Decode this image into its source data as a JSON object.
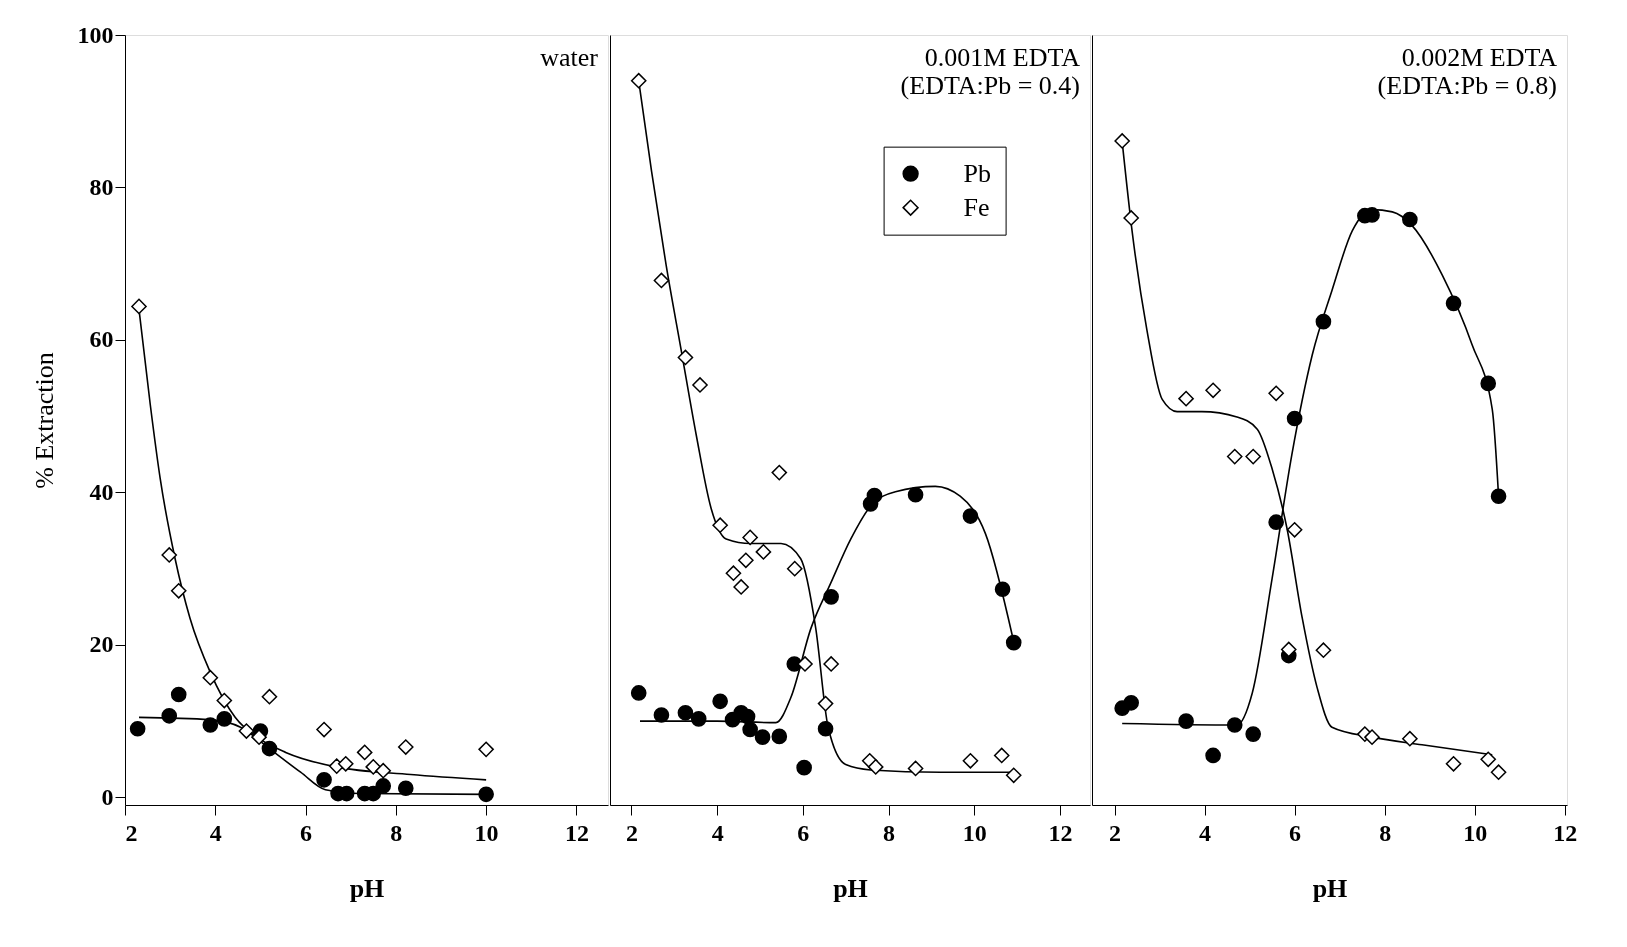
{
  "chart_data": [
    {
      "type": "scatter",
      "annotations": [
        "water"
      ],
      "xlabel": "pH",
      "ylabel": "% Extraction",
      "xlim": [
        2,
        12.7
      ],
      "ylim": [
        -1,
        100
      ],
      "xticks": [
        2,
        4,
        6,
        8,
        10,
        12
      ],
      "yticks": [
        0,
        20,
        40,
        60,
        80,
        100
      ],
      "grid": false,
      "legend": false,
      "series": [
        {
          "type": "line",
          "color": "#000000",
          "x": [
            2.31,
            2.56,
            2.78,
            3.11,
            3.44,
            3.89,
            4.44,
            5.0,
            5.56,
            6.67,
            8.33,
            10.0
          ],
          "values": [
            64,
            51.5,
            41.8,
            31.3,
            23.5,
            16.4,
            10.5,
            7.6,
            5.9,
            4.0,
            3.0,
            2.3
          ]
        },
        {
          "type": "line",
          "color": "#000000",
          "x": [
            2.31,
            3.89,
            4.56,
            5.22,
            5.89,
            6.44,
            7.22,
            10.0
          ],
          "values": [
            10.5,
            10.2,
            9.2,
            6.3,
            3.3,
            1.0,
            0.5,
            0.4
          ]
        },
        {
          "color": "#000000",
          "marker": "circle",
          "x": [
            2.28,
            2.98,
            3.19,
            3.89,
            4.2,
            5.0,
            5.2,
            6.41,
            6.72,
            6.91,
            7.31,
            7.5,
            7.72,
            8.22,
            10.0
          ],
          "values": [
            9.0,
            10.7,
            13.5,
            9.5,
            10.3,
            8.7,
            6.4,
            2.3,
            0.5,
            0.5,
            0.5,
            0.5,
            1.5,
            1.2,
            0.4
          ]
        },
        {
          "color": "#000000",
          "marker": "diamond",
          "x": [
            2.31,
            2.98,
            3.19,
            3.89,
            4.2,
            4.69,
            4.97,
            5.2,
            6.41,
            6.69,
            6.89,
            7.31,
            7.5,
            7.72,
            8.22,
            10.0
          ],
          "values": [
            64.4,
            31.8,
            27.1,
            15.7,
            12.7,
            8.7,
            7.9,
            13.2,
            8.9,
            4.1,
            4.4,
            5.9,
            4.0,
            3.5,
            6.6,
            6.3
          ]
        }
      ]
    },
    {
      "type": "scatter",
      "annotations": [
        "0.001M EDTA\n(EDTA:Pb = 0.4)"
      ],
      "xlabel": "pH",
      "xlim": [
        1.5,
        12.7
      ],
      "ylim": [
        -1,
        100
      ],
      "xticks": [
        2,
        4,
        6,
        8,
        10,
        12
      ],
      "yticks": [
        0,
        20,
        40,
        60,
        80,
        100
      ],
      "tick_labels": "x",
      "grid": false,
      "legend": "top right",
      "series": [
        {
          "type": "line",
          "color": "#000000",
          "x": [
            2.17,
            2.47,
            2.81,
            3.16,
            3.51,
            3.86,
            4.21,
            4.79,
            5.49,
            5.95,
            6.3,
            6.59,
            7.0,
            7.58,
            9.21,
            10.9
          ],
          "values": [
            94,
            82.1,
            69.8,
            58.7,
            47.6,
            37.9,
            33.9,
            33.3,
            33.3,
            31.3,
            22.2,
            9.2,
            4.3,
            3.6,
            3.3,
            3.3
          ]
        },
        {
          "type": "line",
          "color": "#000000",
          "x": [
            2.2,
            4.0,
            5.37,
            5.72,
            6.19,
            6.65,
            7.12,
            7.58,
            8.16,
            9.09,
            9.67,
            10.26,
            10.9
          ],
          "values": [
            10.0,
            10.0,
            9.8,
            13.1,
            22.2,
            28.1,
            33.9,
            38.2,
            40.1,
            40.8,
            39.5,
            34.6,
            20.9
          ]
        },
        {
          "name": "Pb",
          "color": "#000000",
          "marker": "circle",
          "x": [
            2.17,
            2.7,
            3.26,
            3.57,
            4.07,
            4.36,
            4.56,
            4.71,
            4.77,
            5.06,
            5.45,
            5.8,
            6.03,
            6.53,
            6.66,
            7.58,
            7.67,
            8.63,
            9.91,
            10.66,
            10.92
          ],
          "values": [
            13.7,
            10.8,
            11.1,
            10.3,
            12.6,
            10.2,
            11.1,
            10.6,
            8.9,
            7.9,
            8.0,
            17.5,
            3.9,
            9.0,
            26.3,
            38.5,
            39.6,
            39.7,
            36.9,
            27.3,
            20.3
          ]
        },
        {
          "name": "Fe",
          "color": "#000000",
          "marker": "diamond",
          "x": [
            2.17,
            2.7,
            3.26,
            3.6,
            4.07,
            4.38,
            4.56,
            4.67,
            4.77,
            5.08,
            5.45,
            5.81,
            6.05,
            6.66,
            6.53,
            7.56,
            7.7,
            8.63,
            9.91,
            10.64,
            10.92
          ],
          "values": [
            94.0,
            67.8,
            57.7,
            54.1,
            35.7,
            29.4,
            27.6,
            31.1,
            34.1,
            32.2,
            42.6,
            30.0,
            17.5,
            17.5,
            12.3,
            4.8,
            4.0,
            3.8,
            4.8,
            5.5,
            2.9
          ]
        }
      ]
    },
    {
      "type": "scatter",
      "annotations": [
        "0.002M EDTA\n(EDTA:Pb = 0.8)"
      ],
      "xlabel": "pH",
      "xlim": [
        1.5,
        12.05
      ],
      "ylim": [
        -1,
        100
      ],
      "xticks": [
        2,
        4,
        6,
        8,
        10,
        12
      ],
      "yticks": [
        0,
        20,
        40,
        60,
        80,
        100
      ],
      "tick_labels": "x",
      "grid": false,
      "legend": false,
      "series": [
        {
          "type": "line",
          "color": "#000000",
          "x": [
            2.17,
            2.39,
            2.72,
            3.06,
            3.39,
            3.94,
            4.72,
            5.17,
            5.5,
            5.83,
            6.17,
            6.5,
            6.83,
            7.72,
            8.83,
            10.39
          ],
          "values": [
            86,
            74.3,
            61.3,
            52.2,
            50.6,
            50.6,
            49.9,
            48.3,
            43.1,
            35.3,
            23.5,
            14.4,
            9.2,
            7.9,
            6.9,
            5.6
          ]
        },
        {
          "type": "line",
          "color": "#000000",
          "x": [
            2.17,
            4.72,
            5.06,
            5.5,
            5.94,
            6.39,
            6.83,
            7.28,
            7.72,
            8.17,
            8.61,
            9.28,
            9.94,
            10.39,
            10.53
          ],
          "values": [
            9.7,
            9.5,
            13.7,
            28.7,
            45.0,
            58.0,
            66.5,
            74.3,
            77.1,
            76.8,
            75.0,
            68.5,
            59.4,
            50.9,
            39.5
          ]
        },
        {
          "color": "#000000",
          "marker": "circle",
          "x": [
            2.17,
            2.37,
            3.59,
            4.19,
            4.67,
            5.08,
            5.59,
            5.87,
            6.0,
            6.64,
            7.56,
            7.72,
            8.56,
            9.53,
            10.3,
            10.53
          ],
          "values": [
            11.7,
            12.4,
            10.0,
            5.5,
            9.5,
            8.3,
            36.1,
            18.6,
            49.7,
            62.4,
            76.3,
            76.4,
            75.8,
            64.8,
            54.3,
            39.5
          ]
        },
        {
          "color": "#000000",
          "marker": "diamond",
          "x": [
            2.17,
            2.37,
            3.59,
            4.19,
            4.67,
            5.08,
            5.59,
            5.87,
            6.0,
            6.64,
            7.56,
            7.72,
            8.56,
            9.53,
            10.3,
            10.53
          ],
          "values": [
            86.1,
            76.0,
            52.3,
            53.4,
            44.7,
            44.7,
            53.0,
            19.4,
            35.1,
            19.3,
            8.3,
            7.9,
            7.7,
            4.4,
            5.0,
            3.3
          ]
        }
      ]
    }
  ]
}
